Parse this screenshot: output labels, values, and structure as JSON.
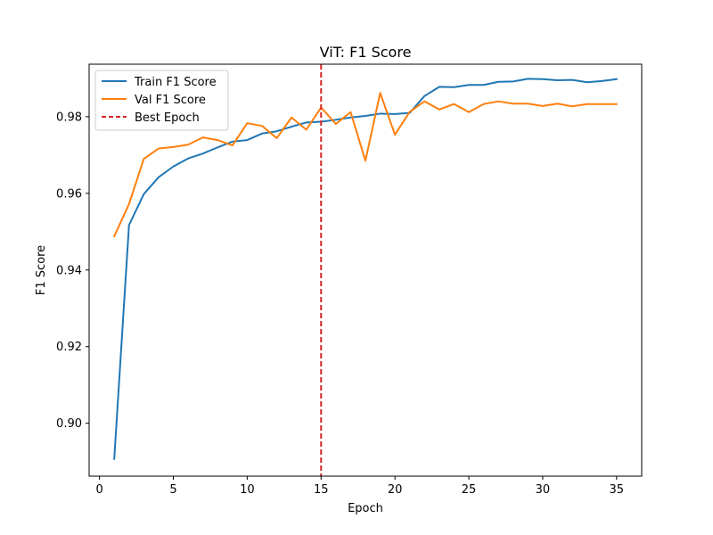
{
  "chart_data": {
    "type": "line",
    "title": "ViT: F1 Score",
    "xlabel": "Epoch",
    "ylabel": "F1 Score",
    "xlim": [
      -0.7,
      36.7
    ],
    "ylim": [
      0.8862,
      0.9937
    ],
    "xticks": [
      0,
      5,
      10,
      15,
      20,
      25,
      30,
      35
    ],
    "yticks": [
      0.9,
      0.92,
      0.94,
      0.96,
      0.98
    ],
    "grid": false,
    "legend_position": "top-left",
    "x": [
      1,
      2,
      3,
      4,
      5,
      6,
      7,
      8,
      9,
      10,
      11,
      12,
      13,
      14,
      15,
      16,
      17,
      18,
      19,
      20,
      21,
      22,
      23,
      24,
      25,
      26,
      27,
      28,
      29,
      30,
      31,
      32,
      33,
      34,
      35
    ],
    "series": [
      {
        "name": "Train F1 Score",
        "color": "#1f77b4",
        "values": [
          0.8907,
          0.9517,
          0.9598,
          0.9642,
          0.967,
          0.9691,
          0.9704,
          0.972,
          0.9735,
          0.9739,
          0.9756,
          0.9762,
          0.9774,
          0.9785,
          0.9787,
          0.9792,
          0.9798,
          0.9802,
          0.9808,
          0.9807,
          0.981,
          0.9854,
          0.9878,
          0.9877,
          0.9883,
          0.9883,
          0.9891,
          0.9892,
          0.9899,
          0.9898,
          0.9895,
          0.9896,
          0.989,
          0.9893,
          0.9898
        ]
      },
      {
        "name": "Val F1 Score",
        "color": "#ff7f0e",
        "values": [
          0.9488,
          0.9572,
          0.969,
          0.9717,
          0.9721,
          0.9727,
          0.9746,
          0.9739,
          0.9725,
          0.9783,
          0.9776,
          0.9744,
          0.9798,
          0.9766,
          0.9824,
          0.9781,
          0.9812,
          0.9685,
          0.9862,
          0.9753,
          0.9813,
          0.984,
          0.9819,
          0.9833,
          0.9812,
          0.9833,
          0.984,
          0.9834,
          0.9834,
          0.9828,
          0.9834,
          0.9827,
          0.9833,
          0.9833,
          0.9833
        ]
      }
    ],
    "best_epoch": {
      "name": "Best Epoch",
      "x": 15,
      "color": "#d62728"
    }
  }
}
